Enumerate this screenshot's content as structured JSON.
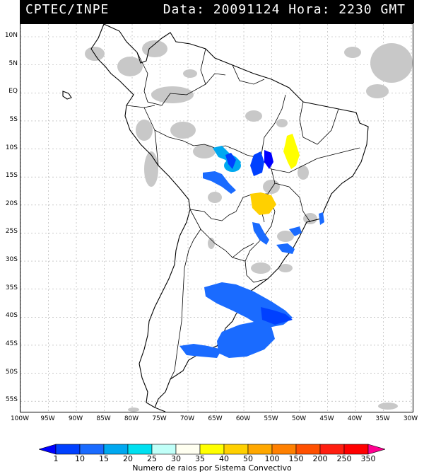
{
  "header": {
    "left": "CPTEC/INPE",
    "right": "Data: 20091124 Hora: 2230 GMT"
  },
  "map": {
    "lat_labels": [
      "10N",
      "5N",
      "EQ",
      "5S",
      "10S",
      "15S",
      "20S",
      "25S",
      "30S",
      "35S",
      "40S",
      "45S",
      "50S",
      "55S"
    ],
    "lon_labels": [
      "100W",
      "95W",
      "90W",
      "85W",
      "80W",
      "75W",
      "70W",
      "65W",
      "60W",
      "55W",
      "50W",
      "45W",
      "40W",
      "35W",
      "30W"
    ]
  },
  "colorbar": {
    "labels": [
      "1",
      "10",
      "15",
      "20",
      "25",
      "30",
      "35",
      "40",
      "50",
      "100",
      "150",
      "200",
      "250",
      "350"
    ],
    "colors": [
      "#0000ff",
      "#0040ff",
      "#1a6bff",
      "#00a8f0",
      "#00e0f0",
      "#c0fff8",
      "#fffff0",
      "#ffff00",
      "#ffd000",
      "#ffa800",
      "#ff8000",
      "#ff5000",
      "#ff1e10",
      "#ff0000",
      "#ff0090"
    ],
    "title": "Numero de raios por Sistema Convectivo"
  }
}
